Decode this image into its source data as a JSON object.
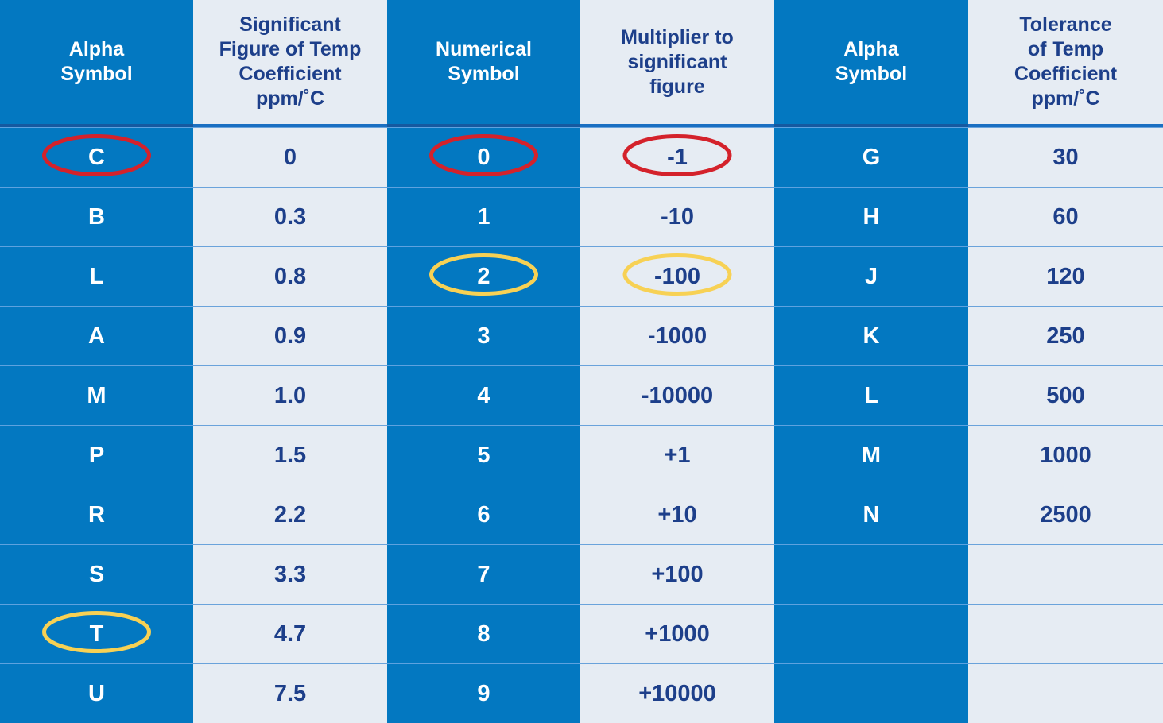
{
  "table": {
    "headers": [
      "Alpha\nSymbol",
      "Significant\nFigure of Temp\nCoefficient\nppm/˚C",
      "Numerical\nSymbol",
      "Multiplier to\nsignificant\nfigure",
      "Alpha\nSymbol",
      "Tolerance\nof Temp\nCoefficient\nppm/˚C"
    ],
    "rows": [
      [
        "C",
        "0",
        "0",
        "-1",
        "G",
        "30"
      ],
      [
        "B",
        "0.3",
        "1",
        "-10",
        "H",
        "60"
      ],
      [
        "L",
        "0.8",
        "2",
        "-100",
        "J",
        "120"
      ],
      [
        "A",
        "0.9",
        "3",
        "-1000",
        "K",
        "250"
      ],
      [
        "M",
        "1.0",
        "4",
        "-10000",
        "L",
        "500"
      ],
      [
        "P",
        "1.5",
        "5",
        "+1",
        "M",
        "1000"
      ],
      [
        "R",
        "2.2",
        "6",
        "+10",
        "N",
        "2500"
      ],
      [
        "S",
        "3.3",
        "7",
        "+100",
        "",
        ""
      ],
      [
        "T",
        "4.7",
        "8",
        "+1000",
        "",
        ""
      ],
      [
        "U",
        "7.5",
        "9",
        "+10000",
        "",
        ""
      ]
    ],
    "column_shades": [
      "dark",
      "light",
      "dark",
      "light",
      "dark",
      "light"
    ]
  },
  "highlights": {
    "colors": {
      "red": "#d4222b",
      "yellow": "#f7d154"
    },
    "marks": [
      {
        "row": 0,
        "col": 0,
        "color": "red"
      },
      {
        "row": 0,
        "col": 2,
        "color": "red"
      },
      {
        "row": 0,
        "col": 3,
        "color": "red"
      },
      {
        "row": 2,
        "col": 2,
        "color": "yellow"
      },
      {
        "row": 2,
        "col": 3,
        "color": "yellow"
      },
      {
        "row": 8,
        "col": 0,
        "color": "yellow"
      }
    ]
  },
  "colors": {
    "dark_column": "#0378c1",
    "light_column": "#e6ecf3",
    "light_text": "#1d3f8a"
  }
}
